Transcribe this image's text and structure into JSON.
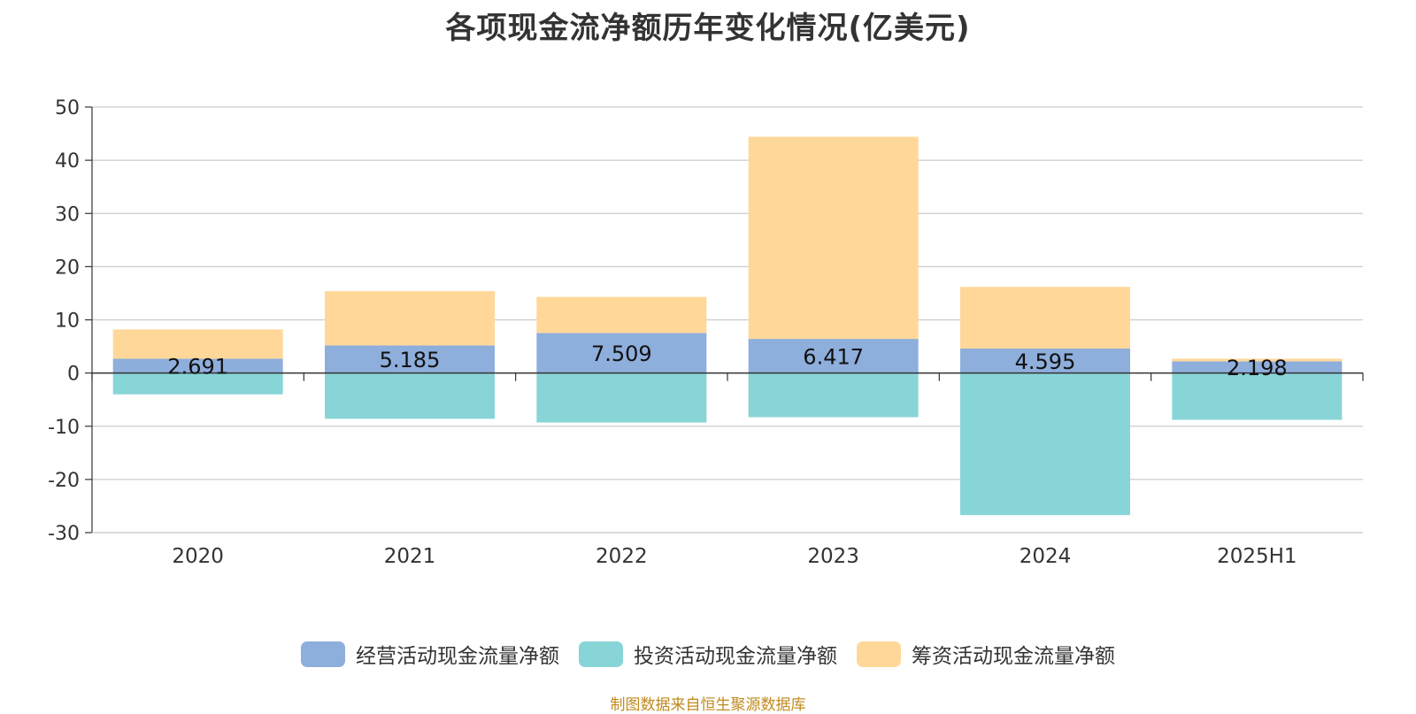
{
  "title": "各项现金流净额历年变化情况(亿美元)",
  "source": "制图数据来自恒生聚源数据库",
  "chart_data": {
    "type": "bar",
    "stacked": true,
    "categories": [
      "2020",
      "2021",
      "2022",
      "2023",
      "2024",
      "2025H1"
    ],
    "series": [
      {
        "name": "经营活动现金流量净额",
        "color": "#8eaedc",
        "values": [
          2.691,
          5.185,
          7.509,
          6.417,
          4.595,
          2.198
        ]
      },
      {
        "name": "投资活动现金流量净额",
        "color": "#88d5d8",
        "values": [
          -4.0,
          -8.6,
          -9.3,
          -8.3,
          -26.7,
          -8.8
        ]
      },
      {
        "name": "筹资活动现金流量净额",
        "color": "#ffd899",
        "values": [
          5.5,
          10.2,
          6.8,
          38.0,
          11.6,
          0.5
        ]
      }
    ],
    "data_labels": [
      "2.691",
      "5.185",
      "7.509",
      "6.417",
      "4.595",
      "2.198"
    ],
    "y_ticks": [
      "50",
      "40",
      "30",
      "20",
      "10",
      "0",
      "-10",
      "-20",
      "-30"
    ],
    "ylim": [
      -30,
      50
    ],
    "grid": true,
    "legend_position": "bottom-center"
  }
}
